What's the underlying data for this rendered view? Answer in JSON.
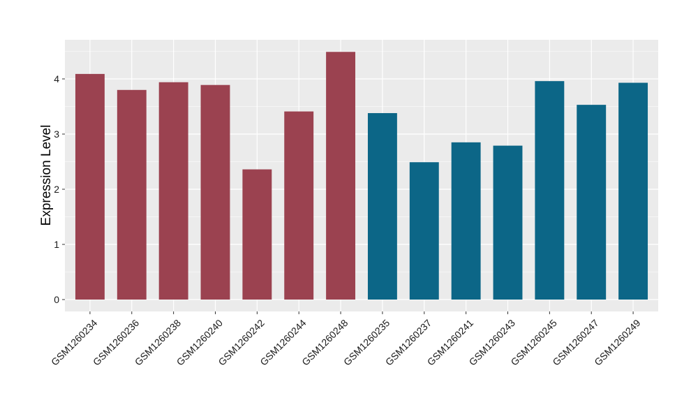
{
  "chart_data": {
    "type": "bar",
    "title": "",
    "xlabel": "",
    "ylabel": "Expression Level",
    "ylim": [
      0,
      4.6
    ],
    "yticks": [
      0,
      1,
      2,
      3,
      4
    ],
    "grid": true,
    "panel_background": "#EBEBEB",
    "gridline_color": "#FFFFFF",
    "legend": "none",
    "categories": [
      "GSM1260234",
      "GSM1260236",
      "GSM1260238",
      "GSM1260240",
      "GSM1260242",
      "GSM1260244",
      "GSM1260248",
      "GSM1260235",
      "GSM1260237",
      "GSM1260241",
      "GSM1260243",
      "GSM1260245",
      "GSM1260247",
      "GSM1260249"
    ],
    "values": [
      4.09,
      3.8,
      3.94,
      3.89,
      2.36,
      3.41,
      4.49,
      3.38,
      2.49,
      2.85,
      2.79,
      3.96,
      3.53,
      3.93
    ],
    "groups": [
      "a",
      "a",
      "a",
      "a",
      "a",
      "a",
      "a",
      "b",
      "b",
      "b",
      "b",
      "b",
      "b",
      "b"
    ],
    "group_colors": {
      "a": "#9B4250",
      "b": "#0C6687"
    }
  }
}
